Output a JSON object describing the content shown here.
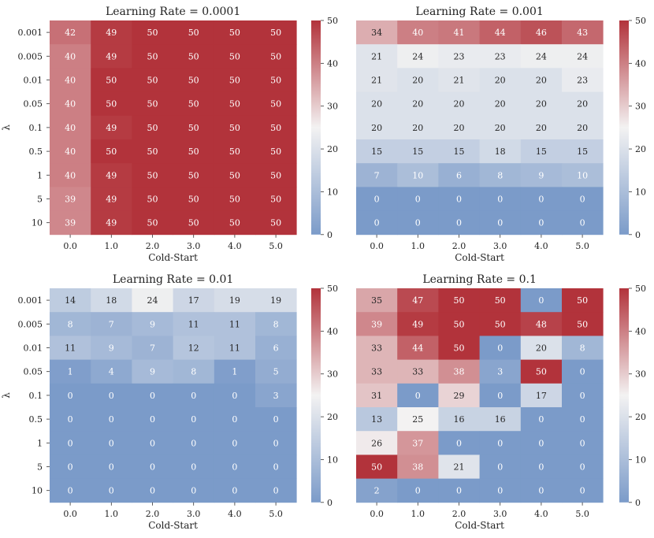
{
  "chart_data": [
    {
      "type": "heatmap",
      "title": "Learning Rate = 0.0001",
      "xlabel": "Cold-Start",
      "ylabel": "λ",
      "x": [
        "0.0",
        "1.0",
        "2.0",
        "3.0",
        "4.0",
        "5.0"
      ],
      "y": [
        "0.001",
        "0.005",
        "0.01",
        "0.05",
        "0.1",
        "0.5",
        "1",
        "5",
        "10"
      ],
      "values": [
        [
          42,
          49,
          50,
          50,
          50,
          50
        ],
        [
          40,
          49,
          50,
          50,
          50,
          50
        ],
        [
          40,
          50,
          50,
          50,
          50,
          50
        ],
        [
          40,
          50,
          50,
          50,
          50,
          50
        ],
        [
          40,
          49,
          50,
          50,
          50,
          50
        ],
        [
          40,
          50,
          50,
          50,
          50,
          50
        ],
        [
          40,
          49,
          50,
          50,
          50,
          50
        ],
        [
          39,
          49,
          50,
          50,
          50,
          50
        ],
        [
          39,
          49,
          50,
          50,
          50,
          50
        ]
      ],
      "colorbar_ticks": [
        "0",
        "10",
        "20",
        "30",
        "40",
        "50"
      ],
      "vmin": 0,
      "vmax": 50
    },
    {
      "type": "heatmap",
      "title": "Learning Rate = 0.001",
      "xlabel": "Cold-Start",
      "ylabel": "",
      "x": [
        "0.0",
        "1.0",
        "2.0",
        "3.0",
        "4.0",
        "5.0"
      ],
      "y": [],
      "values": [
        [
          34,
          40,
          41,
          44,
          46,
          43
        ],
        [
          21,
          24,
          23,
          23,
          24,
          24
        ],
        [
          21,
          20,
          21,
          20,
          20,
          23
        ],
        [
          20,
          20,
          20,
          20,
          20,
          20
        ],
        [
          20,
          20,
          20,
          20,
          20,
          20
        ],
        [
          15,
          15,
          15,
          18,
          15,
          15
        ],
        [
          7,
          10,
          6,
          8,
          9,
          10
        ],
        [
          0,
          0,
          0,
          0,
          0,
          0
        ],
        [
          0,
          0,
          0,
          0,
          0,
          0
        ]
      ],
      "colorbar_ticks": [
        "0",
        "10",
        "20",
        "30",
        "40",
        "50"
      ],
      "vmin": 0,
      "vmax": 50
    },
    {
      "type": "heatmap",
      "title": "Learning Rate = 0.01",
      "xlabel": "Cold-Start",
      "ylabel": "λ",
      "x": [
        "0.0",
        "1.0",
        "2.0",
        "3.0",
        "4.0",
        "5.0"
      ],
      "y": [
        "0.001",
        "0.005",
        "0.01",
        "0.05",
        "0.1",
        "0.5",
        "1",
        "5",
        "10"
      ],
      "values": [
        [
          14,
          18,
          24,
          17,
          19,
          19
        ],
        [
          8,
          7,
          9,
          11,
          11,
          8
        ],
        [
          11,
          9,
          7,
          12,
          11,
          6
        ],
        [
          1,
          4,
          9,
          8,
          1,
          5
        ],
        [
          0,
          0,
          0,
          0,
          0,
          3
        ],
        [
          0,
          0,
          0,
          0,
          0,
          0
        ],
        [
          0,
          0,
          0,
          0,
          0,
          0
        ],
        [
          0,
          0,
          0,
          0,
          0,
          0
        ],
        [
          0,
          0,
          0,
          0,
          0,
          0
        ]
      ],
      "colorbar_ticks": [
        "0",
        "10",
        "20",
        "30",
        "40",
        "50"
      ],
      "vmin": 0,
      "vmax": 50
    },
    {
      "type": "heatmap",
      "title": "Learning Rate = 0.1",
      "xlabel": "Cold-Start",
      "ylabel": "",
      "x": [
        "0.0",
        "1.0",
        "2.0",
        "3.0",
        "4.0",
        "5.0"
      ],
      "y": [],
      "values": [
        [
          35,
          47,
          50,
          50,
          0,
          50
        ],
        [
          39,
          49,
          50,
          50,
          48,
          50
        ],
        [
          33,
          44,
          50,
          0,
          20,
          8
        ],
        [
          33,
          33,
          38,
          3,
          50,
          0
        ],
        [
          31,
          0,
          29,
          0,
          17,
          0
        ],
        [
          13,
          25,
          16,
          16,
          0,
          0
        ],
        [
          26,
          37,
          0,
          0,
          0,
          0
        ],
        [
          50,
          38,
          21,
          0,
          0,
          0
        ],
        [
          2,
          0,
          0,
          0,
          0,
          0
        ]
      ],
      "colorbar_ticks": [
        "0",
        "10",
        "20",
        "30",
        "40",
        "50"
      ],
      "vmin": 0,
      "vmax": 50
    }
  ],
  "colors": {
    "low": "#7b9bc9",
    "mid": "#f3f2f2",
    "high": "#b2333b"
  }
}
